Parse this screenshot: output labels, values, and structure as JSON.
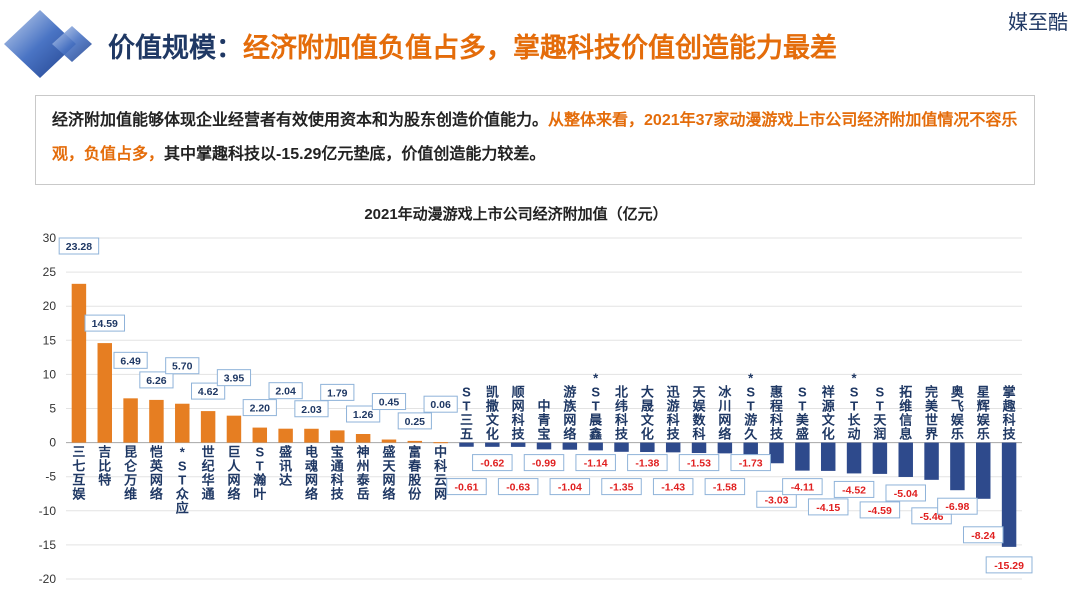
{
  "header": {
    "title_prefix": "价值规模：",
    "title_highlight": "经济附加值负值占多，掌趣科技价值创造能力最差",
    "brand": "媒至酷"
  },
  "summary": {
    "part1": "经济附加值能够体现企业经营者有效使用资本和为股东创造价值能力。",
    "part2": "从整体来看，2021年37家动漫游戏上市公司经济附加值情况不容乐观，负值占多，",
    "part3": "其中掌趣科技以-15.29亿元垫底，价值创造能力较差。"
  },
  "colors": {
    "positive": "#e67e22",
    "negative": "#2e4a8c",
    "title": "#1f3864",
    "accent": "#e46c0a"
  },
  "chart_data": {
    "type": "bar",
    "title": "2021年动漫游戏上市公司经济附加值（亿元）",
    "ylabel": "亿元",
    "ylim": [
      -20,
      30
    ],
    "yticks": [
      30,
      25,
      20,
      15,
      10,
      5,
      0,
      -5,
      -10,
      -15,
      -20
    ],
    "categories": [
      "三七互娱",
      "吉比特",
      "昆仑万维",
      "恺英网络",
      "*ST众应",
      "世纪华通",
      "巨人网络",
      "ST瀚叶",
      "盛讯达",
      "电魂网络",
      "宝通科技",
      "神州泰岳",
      "盛天网络",
      "富春股份",
      "中科云网",
      "ST三五",
      "凯撒文化",
      "顺网科技",
      "中青宝",
      "游族网络",
      "*ST晨鑫",
      "北纬科技",
      "大晟文化",
      "迅游科技",
      "天娱数科",
      "冰川网络",
      "*ST游久",
      "惠程科技",
      "ST美盛",
      "祥源文化",
      "*ST长动",
      "ST天润",
      "拓维信息",
      "完美世界",
      "奥飞娱乐",
      "星辉娱乐",
      "掌趣科技"
    ],
    "values": [
      23.28,
      14.59,
      6.49,
      6.26,
      5.7,
      4.62,
      3.95,
      2.2,
      2.04,
      2.03,
      1.79,
      1.26,
      0.45,
      0.25,
      0.06,
      -0.61,
      -0.62,
      -0.63,
      -0.99,
      -1.04,
      -1.14,
      -1.35,
      -1.38,
      -1.43,
      -1.53,
      -1.58,
      -1.73,
      -3.03,
      -4.11,
      -4.15,
      -4.52,
      -4.59,
      -5.04,
      -5.46,
      -6.98,
      -8.24,
      -15.29
    ],
    "value_labels": [
      "23.28",
      "14.59",
      "6.49",
      "6.26",
      "5.70",
      "4.62",
      "3.95",
      "2.20",
      "2.04",
      "2.03",
      "1.79",
      "1.26",
      "0.45",
      "0.25",
      "0.06",
      "-0.61",
      "-0.62",
      "-0.63",
      "-0.99",
      "-1.04",
      "-1.14",
      "-1.35",
      "-1.38",
      "-1.43",
      "-1.53",
      "-1.58",
      "-1.73",
      "-3.03",
      "-4.11",
      "-4.15",
      "-4.52",
      "-4.59",
      "-5.04",
      "-5.46",
      "-6.98",
      "-8.24",
      "-15.29"
    ],
    "grid": true,
    "legend": "none"
  }
}
